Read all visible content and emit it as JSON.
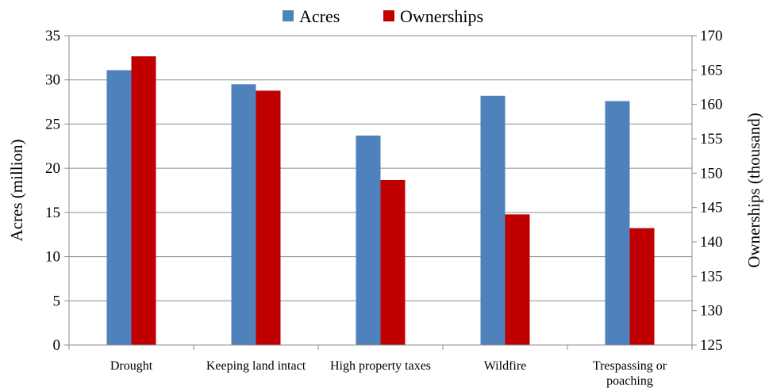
{
  "chart_data": {
    "type": "bar",
    "categories": [
      "Drought",
      "Keeping land intact",
      "High property taxes",
      "Wildfire",
      "Trespassing or poaching"
    ],
    "category_lines": [
      [
        "Drought"
      ],
      [
        "Keeping land intact"
      ],
      [
        "High property taxes"
      ],
      [
        "Wildfire"
      ],
      [
        "Trespassing or",
        "poaching"
      ]
    ],
    "series": [
      {
        "name": "Acres",
        "axis": "left",
        "color": "#4f81bd",
        "values": [
          31.1,
          29.5,
          23.7,
          28.2,
          27.6
        ]
      },
      {
        "name": "Ownerships",
        "axis": "right",
        "color": "#c00000",
        "values": [
          167,
          162,
          149,
          144,
          142
        ]
      }
    ],
    "ylabel": "Acres (million)",
    "y2label": "Ownerships (thousand)",
    "ylim": [
      0,
      35
    ],
    "y2lim": [
      125,
      170
    ],
    "yticks": [
      0,
      5,
      10,
      15,
      20,
      25,
      30,
      35
    ],
    "y2ticks": [
      125,
      130,
      135,
      140,
      145,
      150,
      155,
      160,
      165,
      170
    ],
    "grid": true,
    "legend_position": "top"
  }
}
